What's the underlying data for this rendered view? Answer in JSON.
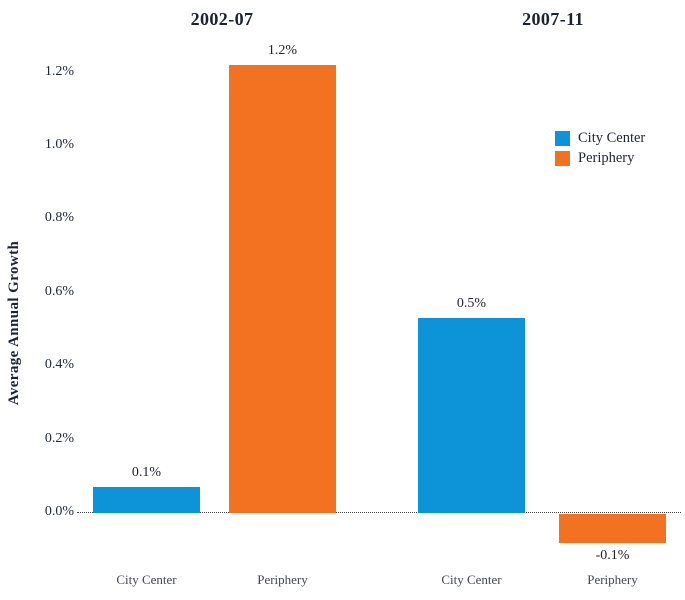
{
  "chart_data": {
    "type": "bar",
    "title": "",
    "ylabel": "Average Annual Growth",
    "xlabel": "",
    "unit": "%",
    "grid": false,
    "legend_position": "right",
    "zero_baseline": "dotted",
    "ylim": [
      -0.15,
      1.35
    ],
    "y_ticks": [
      "0.0%",
      "0.2%",
      "0.4%",
      "0.6%",
      "0.8%",
      "1.0%",
      "1.2%"
    ],
    "y_tick_values": [
      0,
      0.2,
      0.4,
      0.6,
      0.8,
      1.0,
      1.2
    ],
    "series_colors": {
      "City Center": "#0d93d8",
      "Periphery": "#f37221"
    },
    "legend": [
      {
        "label": "City Center",
        "color": "#0d93d8"
      },
      {
        "label": "Periphery",
        "color": "#f37221"
      }
    ],
    "groups": [
      {
        "title": "2002-07",
        "bars": [
          {
            "series": "City Center",
            "value": 0.07,
            "label": "0.1%"
          },
          {
            "series": "Periphery",
            "value": 1.22,
            "label": "1.2%"
          }
        ]
      },
      {
        "title": "2007-11",
        "bars": [
          {
            "series": "City Center",
            "value": 0.53,
            "label": "0.5%"
          },
          {
            "series": "Periphery",
            "value": -0.08,
            "label": "-0.1%"
          }
        ]
      }
    ]
  }
}
